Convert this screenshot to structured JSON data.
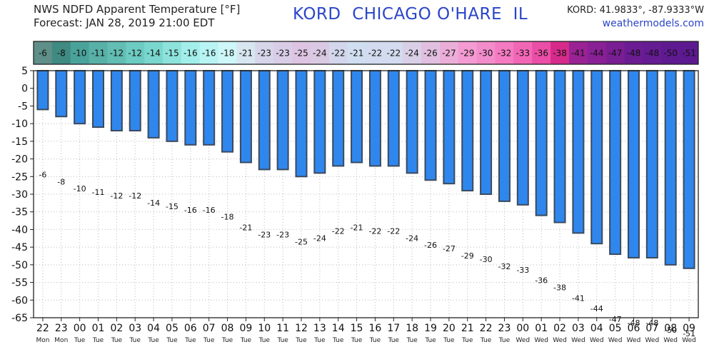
{
  "header": {
    "title": "NWS NDFD Apparent Temperature [°F]",
    "forecast": "Forecast: JAN 28, 2019 21:00 EDT",
    "station": "KORD  CHICAGO O'HARE  IL",
    "coords": "KORD: 41.9833°, -87.9333°W",
    "site": "weathermodels.com"
  },
  "colors": {
    "bar_fill": "#2f87ee",
    "bar_edge": "#3b4a5e",
    "grid": "#b9b9b9",
    "strip": [
      "#5e8f88",
      "#3f8a82",
      "#4aa39b",
      "#58b0a7",
      "#62bdb3",
      "#6ccbc2",
      "#79d7cf",
      "#8de3dc",
      "#a2eeea",
      "#b8f4f4",
      "#cdf7f8",
      "#d8e6f0",
      "#d6d5ea",
      "#d8cce6",
      "#dcc4e2",
      "#dac9e3",
      "#d4d6ec",
      "#cfdef0",
      "#d2dbef",
      "#d2dbef",
      "#d9cfe6",
      "#e0bfe0",
      "#ebaed9",
      "#f39bd2",
      "#f28ccb",
      "#f47ac2",
      "#f266b6",
      "#ea4ea6",
      "#d62b8b",
      "#9a2294",
      "#8a2095",
      "#7a1e94",
      "#6b1c93",
      "#651b92",
      "#5f1a91",
      "#5c1990"
    ]
  },
  "chart_data": {
    "type": "bar",
    "title": "NWS NDFD Apparent Temperature [°F]",
    "xlabel": "",
    "ylabel": "",
    "ylim": [
      -65,
      5
    ],
    "yticks": [
      5,
      0,
      -5,
      -10,
      -15,
      -20,
      -25,
      -30,
      -35,
      -40,
      -45,
      -50,
      -55,
      -60,
      -65
    ],
    "grid": true,
    "hours": [
      "22",
      "23",
      "00",
      "01",
      "02",
      "03",
      "04",
      "05",
      "06",
      "07",
      "08",
      "09",
      "10",
      "11",
      "12",
      "13",
      "14",
      "15",
      "16",
      "17",
      "18",
      "19",
      "20",
      "21",
      "22",
      "23",
      "00",
      "01",
      "02",
      "03",
      "04",
      "05",
      "06",
      "07",
      "08",
      "09"
    ],
    "days": [
      "Mon",
      "Mon",
      "Tue",
      "Tue",
      "Tue",
      "Tue",
      "Tue",
      "Tue",
      "Tue",
      "Tue",
      "Tue",
      "Tue",
      "Tue",
      "Tue",
      "Tue",
      "Tue",
      "Tue",
      "Tue",
      "Tue",
      "Tue",
      "Tue",
      "Tue",
      "Tue",
      "Tue",
      "Tue",
      "Tue",
      "Wed",
      "Wed",
      "Wed",
      "Wed",
      "Wed",
      "Wed",
      "Wed",
      "Wed",
      "Wed",
      "Wed"
    ],
    "values": [
      -6,
      -8,
      -10,
      -11,
      -12,
      -12,
      -14,
      -15,
      -16,
      -16,
      -18,
      -21,
      -23,
      -23,
      -25,
      -24,
      -22,
      -21,
      -22,
      -22,
      -24,
      -26,
      -27,
      -29,
      -30,
      -32,
      -33,
      -36,
      -38,
      -41,
      -44,
      -47,
      -48,
      -48,
      -50,
      -51
    ]
  }
}
